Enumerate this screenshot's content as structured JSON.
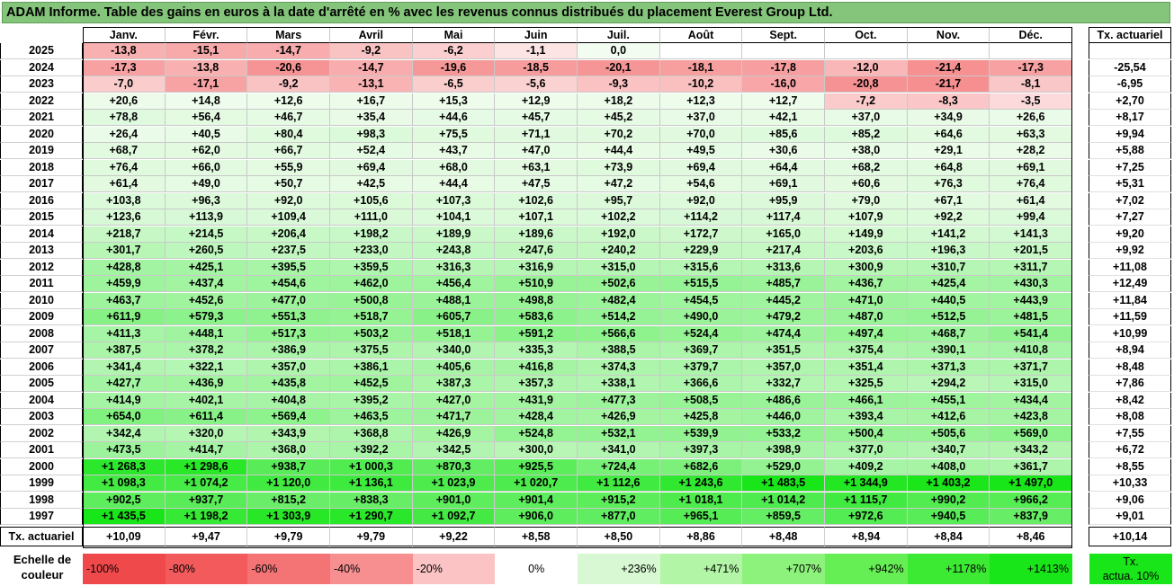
{
  "title": "ADAM Informe. Table des gains en euros à la date d'arrêté en % avec les revenus connus distribués du placement Everest Group Ltd.",
  "months": [
    "Janv.",
    "Févr.",
    "Mars",
    "Avril",
    "Mai",
    "Juin",
    "Juil.",
    "Août",
    "Sept.",
    "Oct.",
    "Nov.",
    "Déc."
  ],
  "tx_header": "Tx. actuariel",
  "rows": [
    {
      "year": "2025",
      "values": [
        "-13,8",
        "-15,1",
        "-14,7",
        "-9,2",
        "-6,2",
        "-1,1",
        "0,0",
        "",
        "",
        "",
        "",
        ""
      ],
      "tx": ""
    },
    {
      "year": "2024",
      "values": [
        "-17,3",
        "-13,8",
        "-20,6",
        "-14,7",
        "-19,6",
        "-18,5",
        "-20,1",
        "-18,1",
        "-17,8",
        "-12,0",
        "-21,4",
        "-17,3"
      ],
      "tx": "-25,54"
    },
    {
      "year": "2023",
      "values": [
        "-7,0",
        "-17,1",
        "-9,2",
        "-13,1",
        "-6,5",
        "-5,6",
        "-9,3",
        "-10,2",
        "-16,0",
        "-20,8",
        "-21,7",
        "-8,1"
      ],
      "tx": "-6,95"
    },
    {
      "year": "2022",
      "values": [
        "+20,6",
        "+14,8",
        "+12,6",
        "+16,7",
        "+15,3",
        "+12,9",
        "+18,2",
        "+12,3",
        "+12,7",
        "-7,2",
        "-8,3",
        "-3,5"
      ],
      "tx": "+2,70"
    },
    {
      "year": "2021",
      "values": [
        "+78,8",
        "+56,4",
        "+46,7",
        "+35,4",
        "+44,6",
        "+45,7",
        "+45,2",
        "+37,0",
        "+42,1",
        "+37,0",
        "+34,9",
        "+26,6"
      ],
      "tx": "+8,17"
    },
    {
      "year": "2020",
      "values": [
        "+26,4",
        "+40,5",
        "+80,4",
        "+98,3",
        "+75,5",
        "+71,1",
        "+70,2",
        "+70,0",
        "+85,6",
        "+85,2",
        "+64,6",
        "+63,3"
      ],
      "tx": "+9,94"
    },
    {
      "year": "2019",
      "values": [
        "+68,7",
        "+62,0",
        "+66,7",
        "+52,4",
        "+43,7",
        "+47,0",
        "+44,4",
        "+49,5",
        "+30,6",
        "+38,0",
        "+29,1",
        "+28,2"
      ],
      "tx": "+5,88"
    },
    {
      "year": "2018",
      "values": [
        "+76,4",
        "+66,0",
        "+55,9",
        "+69,4",
        "+68,0",
        "+63,1",
        "+73,9",
        "+69,4",
        "+64,4",
        "+68,2",
        "+64,8",
        "+69,1"
      ],
      "tx": "+7,25"
    },
    {
      "year": "2017",
      "values": [
        "+61,4",
        "+49,0",
        "+50,7",
        "+42,5",
        "+44,4",
        "+47,5",
        "+47,2",
        "+54,6",
        "+69,1",
        "+60,6",
        "+76,3",
        "+76,4"
      ],
      "tx": "+5,31"
    },
    {
      "year": "2016",
      "values": [
        "+103,8",
        "+96,3",
        "+92,0",
        "+105,6",
        "+107,3",
        "+102,6",
        "+95,7",
        "+92,0",
        "+95,9",
        "+79,0",
        "+67,1",
        "+61,4"
      ],
      "tx": "+7,02"
    },
    {
      "year": "2015",
      "values": [
        "+123,6",
        "+113,9",
        "+109,4",
        "+111,0",
        "+104,1",
        "+107,1",
        "+102,2",
        "+114,2",
        "+117,4",
        "+107,9",
        "+92,2",
        "+99,4"
      ],
      "tx": "+7,27"
    },
    {
      "year": "2014",
      "values": [
        "+218,7",
        "+214,5",
        "+206,4",
        "+198,2",
        "+189,9",
        "+189,6",
        "+192,0",
        "+172,7",
        "+165,0",
        "+149,9",
        "+141,2",
        "+141,3"
      ],
      "tx": "+9,20"
    },
    {
      "year": "2013",
      "values": [
        "+301,7",
        "+260,5",
        "+237,5",
        "+233,0",
        "+243,8",
        "+247,6",
        "+240,2",
        "+229,9",
        "+217,4",
        "+203,6",
        "+196,3",
        "+201,5"
      ],
      "tx": "+9,92"
    },
    {
      "year": "2012",
      "values": [
        "+428,8",
        "+425,1",
        "+395,5",
        "+359,5",
        "+316,3",
        "+316,9",
        "+315,0",
        "+315,6",
        "+313,6",
        "+300,9",
        "+310,7",
        "+311,7"
      ],
      "tx": "+11,08"
    },
    {
      "year": "2011",
      "values": [
        "+459,9",
        "+437,4",
        "+454,6",
        "+462,0",
        "+456,4",
        "+510,9",
        "+502,6",
        "+515,5",
        "+485,7",
        "+436,7",
        "+425,4",
        "+430,3"
      ],
      "tx": "+12,49"
    },
    {
      "year": "2010",
      "values": [
        "+463,7",
        "+452,6",
        "+477,0",
        "+500,8",
        "+488,1",
        "+498,8",
        "+482,4",
        "+454,5",
        "+445,2",
        "+471,0",
        "+440,5",
        "+443,9"
      ],
      "tx": "+11,84"
    },
    {
      "year": "2009",
      "values": [
        "+611,9",
        "+579,3",
        "+551,3",
        "+518,7",
        "+605,7",
        "+583,6",
        "+514,2",
        "+490,0",
        "+479,2",
        "+487,0",
        "+512,5",
        "+481,5"
      ],
      "tx": "+11,59"
    },
    {
      "year": "2008",
      "values": [
        "+411,3",
        "+448,1",
        "+517,3",
        "+503,2",
        "+518,1",
        "+591,2",
        "+566,6",
        "+524,4",
        "+474,4",
        "+497,4",
        "+468,7",
        "+541,4"
      ],
      "tx": "+10,99"
    },
    {
      "year": "2007",
      "values": [
        "+387,5",
        "+378,2",
        "+386,9",
        "+375,5",
        "+340,0",
        "+335,3",
        "+388,5",
        "+369,7",
        "+351,5",
        "+375,4",
        "+390,1",
        "+410,8"
      ],
      "tx": "+8,94"
    },
    {
      "year": "2006",
      "values": [
        "+341,4",
        "+322,1",
        "+357,0",
        "+386,1",
        "+405,6",
        "+416,8",
        "+374,3",
        "+379,7",
        "+357,0",
        "+351,4",
        "+371,3",
        "+371,7"
      ],
      "tx": "+8,48"
    },
    {
      "year": "2005",
      "values": [
        "+427,7",
        "+436,9",
        "+435,8",
        "+452,5",
        "+387,3",
        "+357,3",
        "+338,1",
        "+366,6",
        "+332,7",
        "+325,5",
        "+294,2",
        "+315,0"
      ],
      "tx": "+7,86"
    },
    {
      "year": "2004",
      "values": [
        "+414,9",
        "+402,1",
        "+404,8",
        "+395,2",
        "+427,0",
        "+431,9",
        "+477,3",
        "+508,5",
        "+486,6",
        "+466,1",
        "+455,1",
        "+434,4"
      ],
      "tx": "+8,42"
    },
    {
      "year": "2003",
      "values": [
        "+654,0",
        "+611,4",
        "+569,4",
        "+463,5",
        "+471,7",
        "+428,4",
        "+426,9",
        "+425,8",
        "+446,0",
        "+393,4",
        "+412,6",
        "+423,8"
      ],
      "tx": "+8,08"
    },
    {
      "year": "2002",
      "values": [
        "+342,4",
        "+320,0",
        "+343,9",
        "+368,8",
        "+426,9",
        "+524,8",
        "+532,1",
        "+539,9",
        "+533,2",
        "+500,4",
        "+505,6",
        "+569,0"
      ],
      "tx": "+7,55"
    },
    {
      "year": "2001",
      "values": [
        "+473,5",
        "+414,7",
        "+368,0",
        "+392,2",
        "+342,5",
        "+300,0",
        "+341,0",
        "+397,3",
        "+398,9",
        "+377,0",
        "+340,7",
        "+343,2"
      ],
      "tx": "+6,72"
    },
    {
      "year": "2000",
      "values": [
        "+1 268,3",
        "+1 298,6",
        "+938,7",
        "+1 000,3",
        "+870,3",
        "+925,5",
        "+724,4",
        "+682,6",
        "+529,0",
        "+409,2",
        "+408,0",
        "+361,7"
      ],
      "tx": "+8,55"
    },
    {
      "year": "1999",
      "values": [
        "+1 098,3",
        "+1 074,2",
        "+1 120,0",
        "+1 136,1",
        "+1 023,9",
        "+1 020,7",
        "+1 112,6",
        "+1 243,6",
        "+1 483,5",
        "+1 344,9",
        "+1 403,2",
        "+1 497,0"
      ],
      "tx": "+10,33"
    },
    {
      "year": "1998",
      "values": [
        "+902,5",
        "+937,7",
        "+815,2",
        "+838,3",
        "+901,0",
        "+901,4",
        "+915,2",
        "+1 018,1",
        "+1 014,2",
        "+1 115,7",
        "+990,2",
        "+966,2"
      ],
      "tx": "+9,06"
    },
    {
      "year": "1997",
      "values": [
        "+1 435,5",
        "+1 198,2",
        "+1 303,9",
        "+1 290,7",
        "+1 092,7",
        "+906,0",
        "+877,0",
        "+965,1",
        "+859,5",
        "+972,6",
        "+940,5",
        "+837,9"
      ],
      "tx": "+9,01"
    }
  ],
  "totals": {
    "label": "Tx. actuariel",
    "values": [
      "+10,09",
      "+9,47",
      "+9,79",
      "+9,79",
      "+9,22",
      "+8,58",
      "+8,50",
      "+8,86",
      "+8,48",
      "+8,94",
      "+8,84",
      "+8,46"
    ],
    "tx": "+10,14"
  },
  "scale": {
    "label_line1": "Echelle de",
    "label_line2": "couleur",
    "swatches": [
      {
        "text": "-100%",
        "color": "#f0494b",
        "align": "left"
      },
      {
        "text": "-80%",
        "color": "#f25a5c",
        "align": "left"
      },
      {
        "text": "-60%",
        "color": "#f47375",
        "align": "left"
      },
      {
        "text": "-40%",
        "color": "#f78e90",
        "align": "left"
      },
      {
        "text": "-20%",
        "color": "#fbc3c4",
        "align": "left"
      },
      {
        "text": "0%",
        "color": "#ffffff",
        "align": "center"
      },
      {
        "text": "+236%",
        "color": "#d8f8d3",
        "align": "right"
      },
      {
        "text": "+471%",
        "color": "#b2f5a6",
        "align": "right"
      },
      {
        "text": "+707%",
        "color": "#8df27c",
        "align": "right"
      },
      {
        "text": "+942%",
        "color": "#66ee55",
        "align": "right"
      },
      {
        "text": "+1178%",
        "color": "#3dea33",
        "align": "right"
      },
      {
        "text": "+1413%",
        "color": "#19e619",
        "align": "right"
      }
    ],
    "tx_line1": "Tx.",
    "tx_line2": "actua. 10%",
    "tx_color": "#19e619"
  },
  "colors": {
    "title_bar": "#84c47b",
    "negative_strong": "#f0494b",
    "positive_strong": "#19e619"
  }
}
